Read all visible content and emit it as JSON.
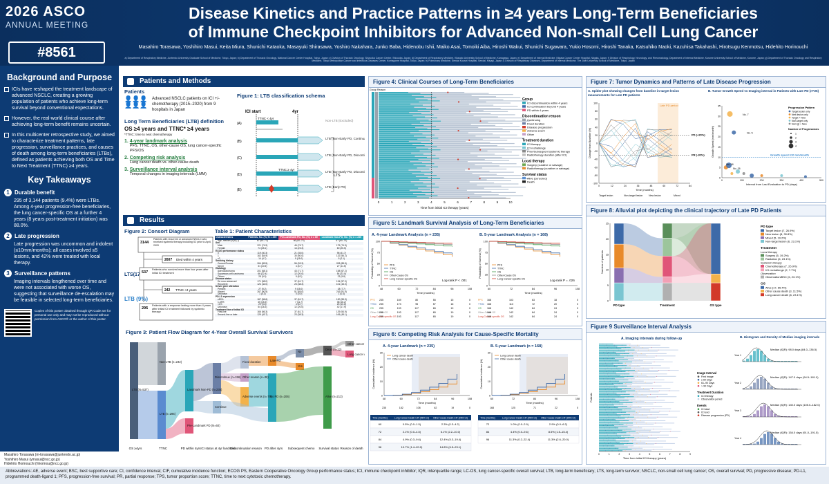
{
  "header": {
    "year": "2026",
    "org": "ASCO",
    "meeting": "ANNUAL MEETING",
    "abstract": "#8561",
    "title_line1": "Disease Kinetics and Practice Patterns in ≥4 years Long-Term Beneficiaries",
    "title_line2": "of Immune Checkpoint Inhibitors for Advanced Non-small Cell Lung Cancer",
    "authors": "Masahiro Torasawa, Yoshihiro Masui, Keita Miura, Shunichi Kataoka, Masayuki Shirasawa, Yoshiro Nakahara, Junko Baba, Hidenobu Ishii, Maiko Asai, Tomoiki Aiba, Hiroshi Wakui, Shunichi Sugawara, Yukio Hosomi, Hiroshi Tanaka, Katsuhiko Naoki, Kazuhisa Takahashi, Hirotsugu Kenmotsu, Hidehito Horinouchi",
    "affiliations": "a) Department of Respiratory Medicine, Juntendo University Graduate School of Medicine, Tokyo, Japan; b) Department of Thoracic Oncology, National Cancer Center Hospital, Tokyo, Japan; c) Division of Thoracic Oncology, Shizuoka Cancer Center, Shizuoka, Japan; d) Department of Respiratory Medicine, Kitasato University School of Medicine, Kanagawa, Japan; e) Department of Internal Medicine, Niigata Cancer Center Hospital, Niigata, Japan; f) Division of Respirology, Neurology, and Rheumatology, Department of Internal Medicine, Kurume University School of Medicine, Kurume, Japan; g) Department of Thoracic Oncology and Respiratory Medicine, Tokyo Metropolitan Cancer and Infectious Diseases Center, Komagome Hospital, Tokyo, Japan; h) Pulmonary Medicine, Sendai Kousei Hospital, Sendai, Miyagi, Japan; i) Division of Respiratory Diseases, Department of Internal Medicine, The Jikei University School of Medicine, Tokyo, Japan"
  },
  "left": {
    "bg_title": "Background and Purpose",
    "bg": [
      "ICIs have reshaped the treatment landscape of advanced NSCLC, creating a growing population of patients who achieve long-term survival beyond conventional expectations.",
      "However, the real-world clinical course after achieving long-term benefit remains uncertain.",
      "In this multicenter retrospective study, we aimed to characterize treatment patterns, late progression, surveillance practices, and causes of death among long-term beneficiaries (LTBs), defined as patients achieving both OS and Time to Next Treatment (TTNC) ≥4 years."
    ],
    "kt_title": "Key Takeaways",
    "kt": [
      {
        "n": "1",
        "h": "Durable benefit",
        "t": "295 of 3,144 patients (9.4%) were LTBs. Among 4-year progression-free beneficiaries, the lung cancer-specific OS at a further 4 years (8 years post-treatment initiation) was 88.0%."
      },
      {
        "n": "2",
        "h": "Late progression",
        "t": "Late progression was uncommon and indolent (≤10mm/months); all cases involved ≤5 lesions, and 42% were treated with local therapy."
      },
      {
        "n": "3",
        "h": "Surveillance patterns",
        "t": "Imaging intervals lengthened over time and were not associated with worse OS, suggesting that surveillance de-escalation may be feasible in selected long-term beneficiaries."
      }
    ],
    "qr_text": "Copies of this poster obtained through QR Code are for personal use only and may not be reproduced without permission from ASCO® or the author of this poster.",
    "contacts": [
      "Masahiro Torasawa (m-torasawa@juntendo.ac.jp)",
      "Yoshihiro Masui (ymasui@ncc.go.jp)",
      "Hidehito Horinouchi (hhorinou@ncc.go.jp)"
    ]
  },
  "methods": {
    "title": "Patients and Methods",
    "patients_label": "Patients",
    "patients_text": "Advanced NSCLC patients on ICI +/- chemotherapy (2015–2020) from 9 hospitals in Japan",
    "ltb_def_title": "Long Term Beneficiaries (LTB) definition",
    "ltb_def": "OS ≥4 years and TTNC* ≥4 years",
    "ttnc_note": "*TTNC: time to next chemotherapy",
    "items": [
      {
        "n": "1.",
        "h": "4-year landmark analysis",
        "t": "PFS, TTNC, OS, other-cause OS, lung cancer-specific PFS/OS"
      },
      {
        "n": "2.",
        "h": "Competing risk analysis",
        "t": "Lung cancer death vs. other-cause death"
      },
      {
        "n": "3.",
        "h": "Surveillance interval analysis",
        "t": "Temporal changes in imaging intervals (LMM)"
      }
    ],
    "fig1_title": "Figure 1: LTB classification schema",
    "fig1_ici": "ICI start",
    "fig1_4yr": "4yr",
    "fig1_ttnc4": "TTNC < 4yr",
    "fig1_ttncge4": "TTNC ≥ 4yr",
    "fig1_rows": [
      "(A)",
      "(B)",
      "(C)",
      "(D)",
      "(E)"
    ],
    "fig1_labels": [
      "Non-LTB (Excluded)",
      "LTB (Non-Early PD, Continuation)",
      "LTB (Non-Early PD, Discontinuation)",
      "LTB (Non-Early PD, Discontinuation)",
      "LTB (Early PD)"
    ],
    "fig1_lts": "LTS"
  },
  "results": {
    "title": "Results",
    "fig2_title": "Figure 2: Consort Diagram",
    "c1": "3144",
    "c1t": "Patients with recurrent or advanced NSCLC who received systemic therapy including ICI prior to April, 2020",
    "c2": "2607",
    "c2t": "Died within 4 years",
    "lts_label": "LTS(17%)",
    "c3": "537",
    "c3t": "Patients who survived more than four years after initial ICI treatment",
    "c4": "242",
    "c4t": "TTNC <4 years",
    "ltb_label": "LTB (9%)",
    "c5": "295",
    "c5t": "Patients with a response lasting more than 4 years after initial ICI treatment followed by systemic therapy",
    "table1_title": "Table 1: Patient Characteristics",
    "table_headers": [
      "Characteristics",
      "Patients, No. (%) N = 295",
      "Pre-Landmark PD, No. (%) n = 60",
      "Landmark Non-PD, No. (%) n = 235"
    ],
    "table_rows": [
      [
        "Age, median (IQR), y",
        "67 (60–73)",
        "66 (60–70)",
        "67 (60–73)"
      ],
      [
        "Sex",
        "",
        "",
        ""
      ],
      [
        "Male",
        "221 (74.9)",
        "46 (76.7)",
        "175 (74.5)"
      ],
      [
        "Female",
        "74 (25.1)",
        "14 (23.3)",
        "60 (25.5)"
      ],
      [
        "ECOG performance status",
        "",
        "",
        ""
      ],
      [
        "0",
        "119 (40.3)",
        "21 (35.0)",
        "98 (41.7)"
      ],
      [
        "1",
        "162 (54.9)",
        "30 (50.0)",
        "132 (56.2)"
      ],
      [
        "≥2",
        "14 (4.7)",
        "9 (15.0)",
        "5 (2.1)"
      ],
      [
        "Smoking history",
        "",
        "",
        ""
      ],
      [
        "Current/Former",
        "264 (89.5)",
        "56 (93.3)",
        "208 (88.5)"
      ],
      [
        "Never",
        "31 (10.5)",
        "4 (6.7)",
        "27 (11.5)"
      ],
      [
        "Histology",
        "",
        "",
        ""
      ],
      [
        "Adenocarcinoma",
        "201 (68.1)",
        "43 (71.7)",
        "158 (67.2)"
      ],
      [
        "Squamous cell carcinoma",
        "66 (22.4)",
        "12 (20.0)",
        "54 (23.0)"
      ],
      [
        "Others",
        "28 (9.5)",
        "5 (8.3)",
        "23 (9.8)"
      ],
      [
        "Disease status",
        "",
        "",
        ""
      ],
      [
        "De novo advanced",
        "171 (58.0)",
        "37 (61.7)",
        "134 (57.0)"
      ],
      [
        "Recurrent",
        "124 (42.0)",
        "23 (38.3)",
        "101 (43.0)"
      ],
      [
        "Driver gene alteration",
        "",
        "",
        ""
      ],
      [
        "Present",
        "27 (9.2)",
        "9 (15.0)",
        "18 (7.7)"
      ],
      [
        "Absent",
        "267 (90.5)",
        "51 (85.0)",
        "216 (91.9)"
      ],
      [
        "Unknown",
        "1 (0.3)",
        "0 (0.0)",
        "1 (0.4)"
      ],
      [
        "PD-L1 expression",
        "",
        "",
        ""
      ],
      [
        "≥50%",
        "167 (56.6)",
        "37 (61.7)",
        "130 (55.3)"
      ],
      [
        "1-49%",
        "45 (15.3)",
        "7 (11.7)",
        "38 (16.2)"
      ],
      [
        "<1%",
        "29 (9.8)",
        "4 (6.7)",
        "25 (10.6)"
      ],
      [
        "Unknown",
        "54 (18.3)",
        "12 (20.0)",
        "42 (17.9)"
      ],
      [
        "Treatment line of initial ICI",
        "",
        "",
        ""
      ],
      [
        "First-line",
        "166 (56.3)",
        "37 (61.7)",
        "129 (54.9)"
      ],
      [
        "Second-line or later",
        "129 (43.7)",
        "23 (38.3)",
        "106 (45.1)"
      ]
    ],
    "fig3_title": "Figure 3: Patient Flow Diagram for 4-Year Overall Survival Survivors",
    "fig3_axis": [
      "OS ≥4yrs",
      "TTNC",
      "PD within 4yrs",
      "ICI status at 4yr landmark",
      "Discontinuation reason",
      "PD after 4yrs",
      "Subsequent chemo",
      "Survival status",
      "Reason of death"
    ],
    "fig3_nodes": [
      "LTS (N=537)",
      "Non-LTB (n=242)",
      "LTB (n=295)",
      "Landmark Non-PD (n=235)",
      "Pre-Landmark PD (N=60)",
      "Discontinue (n=156)",
      "Continue",
      "Fixed duration",
      "Other reason (n=38)",
      "Adverse events (n=79)",
      "Late-PD",
      "No",
      "Yes",
      "No PD (n=206)",
      "No (n=)",
      "Yes (n=)",
      "Dead (n=22)",
      "Alive (n=213)",
      "Other cancer",
      "Lung cancer death"
    ]
  },
  "fig4": {
    "title": "Figure 4: Clinical Courses of Long-Term Beneficiaries",
    "group_label": "Group",
    "reason_label": "Reason",
    "xlabel": "Time from initial ICI therapy (years)",
    "legend_groups": [
      {
        "head": "Group",
        "items": [
          "ICI discontinuation within 4 years",
          "ICI continuation beyond 4 years",
          "PD within 4 years"
        ]
      },
      {
        "head": "Discontinuation reason",
        "items": [
          "Continuing",
          "Fixed duration",
          "Disease progression",
          "Adverse event",
          "Other"
        ]
      },
      {
        "head": "Treatment duration",
        "items": [
          "ICI therapy",
          "ICI rechallenge",
          "Prior/Subsequent systemic therapy",
          "Radiotherapy duration (after ICI)"
        ]
      },
      {
        "head": "Local therapy",
        "items": [
          "Surgery (curative or salvage)",
          "Radiotherapy (curative or salvage)"
        ]
      },
      {
        "head": "Survival status",
        "items": [
          "Alive (censored)",
          "Death"
        ]
      }
    ],
    "xticks": [
      "0",
      "1",
      "2",
      "3",
      "4",
      "5",
      "6",
      "7",
      "8",
      "9",
      "10"
    ]
  },
  "fig5": {
    "title": "Figure 5: Landmark Survival Analysis of Long-Term Beneficiaries",
    "a_title": "A. 4-year Landmark Analysis (n = 235)",
    "b_title": "B. 5-year Landmark Analysis (n = 168)",
    "ylabel": "Probability of Survival (%)",
    "xlabel": "Time (months)",
    "legend": [
      "PFS",
      "TTNC",
      "OS",
      "Other-Cause OS",
      "Lung Cancer-specific OS"
    ],
    "a_p": "Log-rank P < .001",
    "b_p": "Log-rank P = .026",
    "a_x": [
      "48",
      "60",
      "72",
      "84",
      "96",
      "108"
    ],
    "b_x": [
      "60",
      "72",
      "84",
      "96",
      "108"
    ],
    "y_ticks": [
      "0",
      "25",
      "50",
      "75",
      "100"
    ],
    "risk_rows": [
      "PFS",
      "TTNC",
      "OS",
      "Other-Cause OS",
      "Lung Cancer-specific OS"
    ],
    "a_risk": [
      [
        "235",
        "169",
        "80",
        "55",
        "15",
        "0"
      ],
      [
        "235",
        "173",
        "95",
        "57",
        "16",
        "0"
      ],
      [
        "235",
        "193",
        "117",
        "65",
        "19",
        "0"
      ],
      [
        "235",
        "193",
        "117",
        "65",
        "19",
        "0"
      ],
      [
        "235",
        "193",
        "117",
        "65",
        "19",
        "0"
      ]
    ],
    "b_risk": [
      [
        "168",
        "103",
        "63",
        "18",
        "0"
      ],
      [
        "168",
        "113",
        "72",
        "20",
        "0"
      ],
      [
        "168",
        "142",
        "84",
        "24",
        "0"
      ],
      [
        "168",
        "142",
        "84",
        "24",
        "0"
      ],
      [
        "168",
        "142",
        "84",
        "24",
        "0"
      ]
    ]
  },
  "fig6": {
    "title": "Figure 6: Competing Risk Analysis for Cause-Specific Mortality",
    "a_title": "A. 4-year Landmark (n = 235)",
    "b_title": "B. 5-year Landmark (n = 168)",
    "legend": [
      "Lung cancer death",
      "Other cause death"
    ],
    "ylabel": "Cumulative Incidence (%)",
    "xlabel": "Time (months)",
    "a_x": [
      "48",
      "60",
      "72",
      "84",
      "96",
      "108"
    ],
    "b_x": [
      "60",
      "72",
      "84",
      "96",
      "108"
    ],
    "y_ticks": [
      "0",
      "10",
      "20",
      "30"
    ],
    "a_risk": [
      "235",
      "182",
      "108",
      "62",
      "19",
      "0"
    ],
    "b_risk": [
      "168",
      "125",
      "71",
      "22",
      "0"
    ],
    "tbl_headers": [
      "Time (months)",
      "Lung Cancer Death CIF (95% CI)",
      "Other-Cause Death CIF (95% CI)"
    ],
    "a_tbl": [
      [
        "60",
        "0.5% (0.0–1.5)",
        "2.3% (0.3–4.2)"
      ],
      [
        "72",
        "2.1% (0.0–4.5)",
        "6.1% (2.2–10.0)"
      ],
      [
        "84",
        "4.9% (0.3–9.6)",
        "12.4% (5.3–19.4)"
      ],
      [
        "96",
        "10.7% (1.4–20.0)",
        "14.8% (6.5–23.1)"
      ]
    ],
    "b_tbl": [
      [
        "72",
        "1.0% (0.0–2.9)",
        "2.9% (0.0–6.2)"
      ],
      [
        "84",
        "4.4% (0.0–9.6)",
        "8.5% (1.5–15.4)"
      ],
      [
        "96",
        "11.3% (0.2–22.4)",
        "11.3% (2.6–20.0)"
      ]
    ]
  },
  "fig7": {
    "title": "Figure 7: Tumor Dynamics and Patterns of Late Disease Progression",
    "a_title": "A. Spider plot showing changes from baseline in target lesion measurements for Late PD patients",
    "b_title": "B. Tumor Growth Speed vs Imaging interval in Patients with Late PD (n=26)",
    "late_pd": "Late PD period",
    "pd_line": "PD (+20%)",
    "pr_line": "PR (-30%)",
    "a_ylabel": "Change from Baseline (%)",
    "a_xlabel": "Time (months)",
    "a_x": [
      "0",
      "12",
      "24",
      "36",
      "48",
      "60",
      "72",
      "84"
    ],
    "a_y": [
      "100",
      "80",
      "60",
      "40",
      "20",
      "0",
      "-20",
      "-40",
      "-60",
      "-80",
      "-100"
    ],
    "a_groups": [
      "Target lesion",
      "Non-target lesion",
      "New lesion",
      "Mixed"
    ],
    "b_ylabel": "Growth Speed (mm/month)",
    "b_xlabel": "Interval from Last Evaluation to PD (days)",
    "b_x": [
      "0",
      "100",
      "200",
      "300",
      "400",
      "500"
    ],
    "b_y": [
      "0",
      "5",
      "10",
      "15",
      "20",
      "25",
      "30",
      "35"
    ],
    "b_note": "Growth speed ≤10 mm/month",
    "b_legend_head": "Progression Pattern",
    "b_legend": [
      "Target lesion only",
      "New lesion only",
      "Target + New",
      "Non-target only",
      "Non-tgt + New"
    ],
    "b_size_head": "Number of Progressions",
    "b_sizes": [
      "1",
      "2",
      "3",
      "4"
    ],
    "b_labels": [
      "No. 7",
      "No. 5",
      "No. 18",
      "No. 26"
    ]
  },
  "fig8": {
    "title": "Figure 8: Alluvial plot depicting the clinical trajectory of Late PD Patients",
    "ylabel": "Number of patients",
    "axis": [
      "PD type",
      "Treatment",
      "OS type"
    ],
    "y_ticks": [
      "0",
      "5",
      "10",
      "15",
      "20",
      "25"
    ],
    "legend": [
      {
        "head": "PD type",
        "items": [
          "Target lesion (7, 26.9%)",
          "New lesion (8, 30.8%)",
          "Mixed (5, 19.2%)",
          "Non-target lesion (6, 23.1%)"
        ]
      },
      {
        "head": "Treatment",
        "items": [
          "Local therapy",
          "Surgery (5, 19.2%)",
          "Radiation (6, 23.1%)",
          "Systemic therapy",
          "Chemotherapy (7, 26.9%)",
          "ICI rechallenge (2, 7.7%)",
          "Observation",
          "Observation/BSC (6, 23.1%)"
        ]
      },
      {
        "head": "OS",
        "items": [
          "Alive (17, 65.4%)",
          "Other cause death (3, 11.5%)",
          "Lung cancer death (6, 23.1%)"
        ]
      }
    ]
  },
  "fig9": {
    "title": "Figure 9 Surveillance Interval Analysis",
    "a_title": "A. Imaging intervals during follow-up",
    "b_title": "B. Histogram and Density of Median imaging intervals",
    "ylabel": "Patients",
    "xlabel": "Time from initial ICI therapy (years)",
    "x": [
      "0",
      "1",
      "2",
      "3",
      "4",
      "5",
      "6",
      "7",
      "8",
      "9"
    ],
    "legend_heads": [
      "Image Interval",
      "Treatment Duration",
      "Events"
    ],
    "legend_interval": [
      "First image",
      "≤ 60 Days",
      "61–90 Days",
      "> 90 Days"
    ],
    "legend_treat": [
      "ICI therapy",
      "Observation period"
    ],
    "legend_events": [
      "ICI start",
      "ICI end",
      "Disease progression (PD)"
    ],
    "medians": [
      "Median (IQR): 98.0 days (84.0–136.5)",
      "Median (IQR): 147.0 days (94.5–181.0)",
      "Median (IQR): 140.0 days (105.0–182.0)",
      "Median (IQR): 154.0 days (91.0–191.5)"
    ],
    "years": [
      "Year 1",
      "Year 2",
      "Year 3",
      "Year 4"
    ]
  },
  "footer": "Abbreviations: AE, adverse event; BSC, best supportive care; CI, confidence interval; CIF, cumulative incidence function; ECOG PS, Eastern Cooperative Oncology Group performance status; ICI, immune checkpoint inhibitor; IQR, interquartile range; LC-OS, lung cancer-specific overall survival; LTB, long-term beneficiary; LTS, long-term survivor; NSCLC, non-small cell lung cancer; OS, overall survival; PD, progressive disease; PD-L1, programmed death-ligand 1; PFS, progression-free survival; PR, partial response; TPS, tumor proportion score; TTNC, time to next cytotoxic chemotherapy.",
  "colors": {
    "navy": "#0d3b74",
    "teal": "#2aa6b8",
    "orange": "#e88a2a",
    "pink": "#e05578",
    "green": "#3f9b4a",
    "red": "#d23a2a",
    "gray": "#8a8a8a"
  }
}
